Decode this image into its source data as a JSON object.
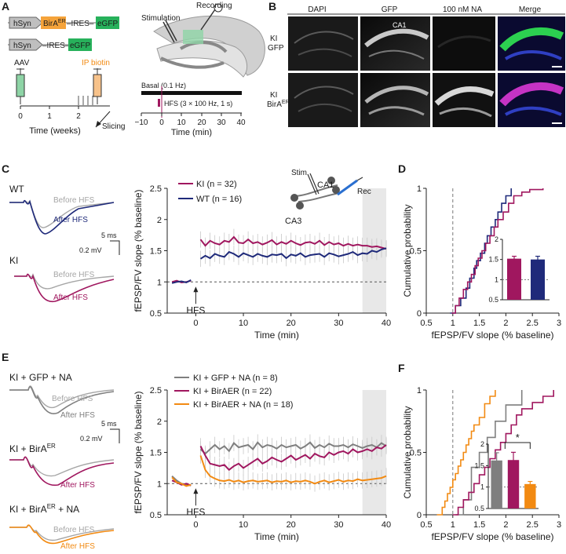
{
  "colors": {
    "wt": "#1f2a7a",
    "ki": "#a0175f",
    "gfp": "#7f7f7f",
    "orange": "#f28a12",
    "light": "#a6a6a6",
    "gfp_green": "#27b15b",
    "birA_orange": "#f5a33a",
    "aav_green": "#8ed4a6",
    "ip_orange": "#f7c28a",
    "shade": "#e8e8e8"
  },
  "panels": {
    "A": "A",
    "B": "B",
    "C": "C",
    "D": "D",
    "E": "E",
    "F": "F"
  },
  "panelA": {
    "constructs": [
      {
        "promoter": "hSyn",
        "gene": "BirA",
        "gene_sup": "ER",
        "ires": "–IRES–",
        "reporter": "eGFP"
      },
      {
        "promoter": "hSyn",
        "ires": "–IRES–",
        "reporter": "eGFP"
      }
    ],
    "aav_label": "AAV",
    "ip_label": "IP biotin",
    "slicing_label": "Slicing",
    "time_axis": {
      "label": "Time (weeks)",
      "ticks": [
        "0",
        "1",
        "2"
      ]
    },
    "stimulation_label": "Stimulation",
    "recording_label": "Recording",
    "basal_label": "Basal (0.1 Hz)",
    "hfs_label": "HFS (3 × 100 Hz, 1 s)",
    "timeline_axis": {
      "label": "Time (min)",
      "ticks": [
        "−10",
        "0",
        "10",
        "20",
        "30",
        "40"
      ]
    }
  },
  "panelB": {
    "columns": [
      "DAPI",
      "GFP",
      "100 nM NA",
      "Merge"
    ],
    "rows": [
      {
        "line1": "KI",
        "line2": "GFP",
        "sup": ""
      },
      {
        "line1": "KI",
        "line2": "BirA",
        "sup": "ER"
      }
    ],
    "ca1_label": "CA1"
  },
  "panelC": {
    "traces": [
      {
        "group": "WT",
        "before": "Before HFS",
        "after": "After HFS"
      },
      {
        "group": "KI",
        "before": "Before HFS",
        "after": "After HFS"
      }
    ],
    "scale": {
      "time": "5 ms",
      "amp": "0.2 mV"
    },
    "schematic": {
      "stim": "Stim",
      "ca1": "CA1",
      "ca3": "CA3",
      "rec": "Rec"
    }
  },
  "panelE": {
    "traces": [
      {
        "group": "KI + GFP + NA",
        "before": "Before HFS",
        "after": "After HFS"
      },
      {
        "group": "KI + BirA",
        "sup": "ER",
        "before": "Before HFS",
        "after": "After HFS"
      },
      {
        "group": "KI + BirA",
        "sup": "ER",
        "suffix": " + NA",
        "before": "Before HFS",
        "after": "After HFS"
      }
    ],
    "scale": {
      "time": "5 ms",
      "amp": "0.2 mV"
    }
  },
  "chart_data": [
    {
      "id": "C-time-course",
      "type": "line",
      "xlabel": "Time (min)",
      "ylabel": "fEPSP/FV slope (% baseline)",
      "xlim": [
        -6,
        40
      ],
      "ylim": [
        0.5,
        2.5
      ],
      "xticks": [
        "0",
        "10",
        "20",
        "30",
        "40"
      ],
      "yticks": [
        "0.5",
        "1",
        "1.5",
        "2",
        "2.5"
      ],
      "annotation": "HFS",
      "shaded_window": [
        35,
        40
      ],
      "legend": [
        {
          "name": "KI",
          "n": "32",
          "text": "KI (n = 32)"
        },
        {
          "name": "WT",
          "n": "16",
          "text": "WT (n = 16)"
        }
      ],
      "series": [
        {
          "name": "KI",
          "x": [
            -5,
            -4,
            -3,
            -2,
            -1,
            1,
            2,
            3,
            4,
            5,
            6,
            7,
            8,
            9,
            10,
            11,
            12,
            13,
            14,
            15,
            16,
            17,
            18,
            19,
            20,
            21,
            22,
            23,
            24,
            25,
            26,
            27,
            28,
            29,
            30,
            31,
            32,
            33,
            34,
            35,
            36,
            37,
            38,
            39,
            40
          ],
          "y": [
            1.0,
            1.02,
            0.99,
            1.0,
            1.02,
            1.68,
            1.58,
            1.66,
            1.62,
            1.6,
            1.66,
            1.64,
            1.72,
            1.63,
            1.62,
            1.68,
            1.62,
            1.64,
            1.6,
            1.63,
            1.67,
            1.6,
            1.64,
            1.61,
            1.66,
            1.62,
            1.59,
            1.63,
            1.64,
            1.61,
            1.66,
            1.59,
            1.64,
            1.6,
            1.62,
            1.58,
            1.61,
            1.58,
            1.6,
            1.58,
            1.58,
            1.56,
            1.57,
            1.55,
            1.53
          ]
        },
        {
          "name": "WT",
          "x": [
            -5,
            -4,
            -3,
            -2,
            -1,
            1,
            2,
            3,
            4,
            5,
            6,
            7,
            8,
            9,
            10,
            11,
            12,
            13,
            14,
            15,
            16,
            17,
            18,
            19,
            20,
            21,
            22,
            23,
            24,
            25,
            26,
            27,
            28,
            29,
            30,
            31,
            32,
            33,
            34,
            35,
            36,
            37,
            38,
            39,
            40
          ],
          "y": [
            0.98,
            1.0,
            1.01,
            0.99,
            1.03,
            1.37,
            1.42,
            1.38,
            1.45,
            1.42,
            1.4,
            1.48,
            1.45,
            1.4,
            1.46,
            1.43,
            1.4,
            1.45,
            1.42,
            1.4,
            1.44,
            1.43,
            1.45,
            1.38,
            1.44,
            1.42,
            1.46,
            1.4,
            1.43,
            1.44,
            1.45,
            1.4,
            1.46,
            1.44,
            1.41,
            1.43,
            1.45,
            1.48,
            1.43,
            1.46,
            1.45,
            1.5,
            1.48,
            1.52,
            1.54
          ]
        }
      ]
    },
    {
      "id": "D-cumulative",
      "type": "line",
      "xlabel": "fEPSP/FV slope (% baseline)",
      "ylabel": "Cumulative probability",
      "xlim": [
        0.5,
        3
      ],
      "ylim": [
        0,
        1
      ],
      "xticks": [
        "0.5",
        "1",
        "1.5",
        "2",
        "2.5",
        "3"
      ],
      "yticks": [
        "0",
        "0.5",
        "1"
      ],
      "series": [
        {
          "name": "WT",
          "x": [
            0.95,
            1.05,
            1.15,
            1.25,
            1.32,
            1.4,
            1.45,
            1.52,
            1.6,
            1.65,
            1.72,
            1.8,
            1.85,
            1.92,
            2.0,
            2.1
          ],
          "y": [
            0,
            0.06,
            0.12,
            0.2,
            0.28,
            0.36,
            0.42,
            0.48,
            0.56,
            0.62,
            0.69,
            0.75,
            0.81,
            0.88,
            0.94,
            1.0
          ]
        },
        {
          "name": "KI",
          "x": [
            0.98,
            1.05,
            1.12,
            1.2,
            1.28,
            1.35,
            1.42,
            1.48,
            1.55,
            1.62,
            1.7,
            1.78,
            1.85,
            1.95,
            2.05,
            2.15,
            2.3,
            2.45,
            2.7
          ],
          "y": [
            0,
            0.06,
            0.12,
            0.19,
            0.25,
            0.31,
            0.38,
            0.44,
            0.5,
            0.56,
            0.62,
            0.69,
            0.75,
            0.81,
            0.88,
            0.94,
            0.97,
            0.99,
            1.0
          ]
        }
      ],
      "inset": {
        "type": "bar",
        "categories": [
          "KI",
          "WT"
        ],
        "values": [
          1.52,
          1.5
        ],
        "errors": [
          0.06,
          0.08
        ],
        "ylim": [
          0.5,
          2
        ],
        "yticks": [
          "0.5",
          "1",
          "1.5",
          "2"
        ]
      }
    },
    {
      "id": "E-time-course",
      "type": "line",
      "xlabel": "Time (min)",
      "ylabel": "fEPSP/FV slope (% baseline)",
      "xlim": [
        -6,
        40
      ],
      "ylim": [
        0.5,
        2.5
      ],
      "xticks": [
        "0",
        "10",
        "20",
        "30",
        "40"
      ],
      "yticks": [
        "0.5",
        "1",
        "1.5",
        "2",
        "2.5"
      ],
      "annotation": "HFS",
      "shaded_window": [
        35,
        40
      ],
      "legend": [
        {
          "name": "KI + GFP + NA",
          "text": "KI + GFP + NA (n = 8)"
        },
        {
          "name": "KI + BirA-ER",
          "text": "KI + BirAER (n = 22)"
        },
        {
          "name": "KI + BirA-ER + NA",
          "text": "KI + BirAER + NA (n = 18)"
        }
      ],
      "series": [
        {
          "name": "KI + GFP + NA",
          "x": [
            -5,
            -4,
            -3,
            -2,
            -1,
            1,
            2,
            3,
            4,
            5,
            6,
            7,
            8,
            9,
            10,
            11,
            12,
            13,
            14,
            15,
            16,
            17,
            18,
            19,
            20,
            21,
            22,
            23,
            24,
            25,
            26,
            27,
            28,
            29,
            30,
            31,
            32,
            33,
            34,
            35,
            36,
            37,
            38,
            39,
            40
          ],
          "y": [
            1.12,
            1.05,
            1.0,
            0.98,
            0.97,
            1.55,
            1.48,
            1.55,
            1.62,
            1.55,
            1.6,
            1.52,
            1.65,
            1.58,
            1.6,
            1.62,
            1.55,
            1.66,
            1.58,
            1.62,
            1.6,
            1.56,
            1.62,
            1.58,
            1.6,
            1.62,
            1.56,
            1.6,
            1.66,
            1.57,
            1.62,
            1.58,
            1.64,
            1.6,
            1.6,
            1.62,
            1.58,
            1.63,
            1.6,
            1.57,
            1.6,
            1.62,
            1.58,
            1.65,
            1.6
          ]
        },
        {
          "name": "KI + BirA-ER",
          "x": [
            -5,
            -4,
            -3,
            -2,
            -1,
            1,
            2,
            3,
            4,
            5,
            6,
            7,
            8,
            9,
            10,
            11,
            12,
            13,
            14,
            15,
            16,
            17,
            18,
            19,
            20,
            21,
            22,
            23,
            24,
            25,
            26,
            27,
            28,
            29,
            30,
            31,
            32,
            33,
            34,
            35,
            36,
            37,
            38,
            39,
            40
          ],
          "y": [
            1.05,
            1.02,
            0.98,
            1.0,
            0.97,
            1.6,
            1.45,
            1.32,
            1.3,
            1.28,
            1.3,
            1.22,
            1.28,
            1.32,
            1.25,
            1.3,
            1.35,
            1.4,
            1.32,
            1.36,
            1.42,
            1.38,
            1.35,
            1.4,
            1.45,
            1.38,
            1.42,
            1.46,
            1.4,
            1.48,
            1.44,
            1.42,
            1.5,
            1.46,
            1.5,
            1.52,
            1.48,
            1.55,
            1.5,
            1.52,
            1.55,
            1.52,
            1.58,
            1.56,
            1.62
          ]
        },
        {
          "name": "KI + BirA-ER + NA",
          "x": [
            -5,
            -4,
            -3,
            -2,
            -1,
            1,
            2,
            3,
            4,
            5,
            6,
            7,
            8,
            9,
            10,
            11,
            12,
            13,
            14,
            15,
            16,
            17,
            18,
            19,
            20,
            21,
            22,
            23,
            24,
            25,
            26,
            27,
            28,
            29,
            30,
            31,
            32,
            33,
            34,
            35,
            36,
            37,
            38,
            39,
            40
          ],
          "y": [
            1.1,
            1.02,
            1.0,
            0.96,
            0.98,
            1.45,
            1.22,
            1.12,
            1.08,
            1.05,
            1.04,
            1.06,
            1.03,
            1.05,
            1.02,
            1.04,
            1.05,
            1.03,
            1.04,
            1.05,
            1.02,
            1.04,
            1.03,
            1.05,
            1.02,
            1.04,
            1.03,
            1.05,
            1.03,
            1.0,
            1.03,
            1.05,
            1.02,
            1.04,
            1.06,
            1.03,
            1.05,
            1.04,
            1.07,
            1.05,
            1.06,
            1.07,
            1.08,
            1.09,
            1.12
          ]
        }
      ]
    },
    {
      "id": "F-cumulative",
      "type": "line",
      "xlabel": "fEPSP/FV slope (% baseline)",
      "ylabel": "Cumulative probability",
      "xlim": [
        0.5,
        3
      ],
      "ylim": [
        0,
        1
      ],
      "xticks": [
        "0.5",
        "1",
        "1.5",
        "2",
        "2.5",
        "3"
      ],
      "yticks": [
        "0",
        "0.5",
        "1"
      ],
      "series": [
        {
          "name": "KI + BirA-ER + NA",
          "x": [
            0.7,
            0.8,
            0.85,
            0.9,
            0.95,
            1.0,
            1.05,
            1.1,
            1.15,
            1.2,
            1.25,
            1.3,
            1.35,
            1.4,
            1.5,
            1.6,
            1.7,
            1.8
          ],
          "y": [
            0,
            0.06,
            0.11,
            0.17,
            0.22,
            0.28,
            0.33,
            0.39,
            0.44,
            0.5,
            0.56,
            0.61,
            0.67,
            0.72,
            0.78,
            0.89,
            0.95,
            1.0
          ]
        },
        {
          "name": "KI + GFP + NA",
          "x": [
            1.05,
            1.2,
            1.35,
            1.5,
            1.65,
            1.8,
            2.0,
            2.3
          ],
          "y": [
            0,
            0.12,
            0.38,
            0.5,
            0.62,
            0.75,
            0.88,
            1.0
          ]
        },
        {
          "name": "KI + BirA-ER",
          "x": [
            1.0,
            1.1,
            1.2,
            1.3,
            1.4,
            1.5,
            1.6,
            1.7,
            1.8,
            1.9,
            2.0,
            2.1,
            2.2,
            2.3,
            2.5,
            2.7,
            2.9
          ],
          "y": [
            0,
            0.06,
            0.12,
            0.18,
            0.25,
            0.32,
            0.38,
            0.45,
            0.52,
            0.58,
            0.65,
            0.72,
            0.8,
            0.85,
            0.9,
            0.95,
            1.0
          ]
        }
      ],
      "inset": {
        "type": "bar",
        "categories": [
          "KI + GFP + NA",
          "KI + BirA-ER",
          "KI + BirA-ER + NA"
        ],
        "values": [
          1.62,
          1.63,
          1.07
        ],
        "errors": [
          0.18,
          0.18,
          0.06
        ],
        "ylim": [
          0.5,
          2
        ],
        "yticks": [
          "0.5",
          "1",
          "1.5",
          "2"
        ],
        "significance": "*"
      }
    }
  ]
}
